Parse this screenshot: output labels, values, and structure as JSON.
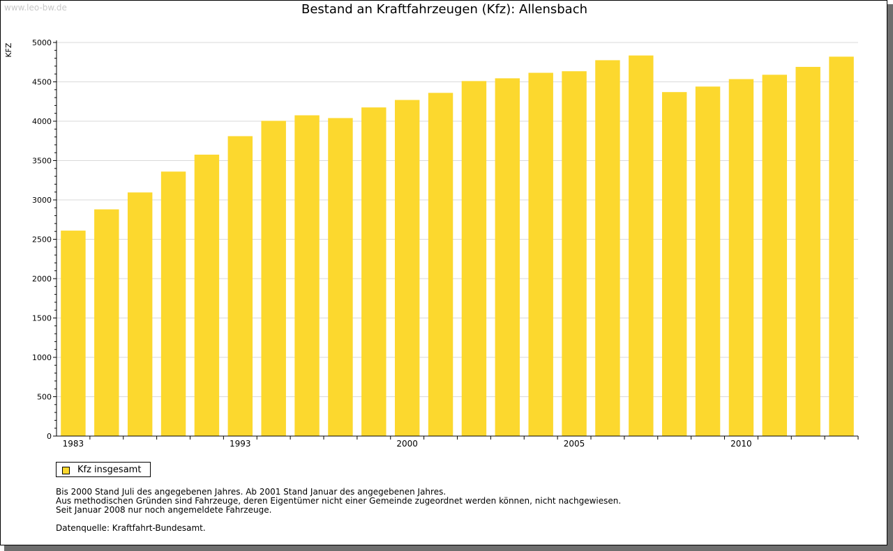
{
  "watermark": "www.leo-bw.de",
  "title": "Bestand an Kraftfahrzeugen (Kfz): Allensbach",
  "legend": {
    "label": "Kfz insgesamt"
  },
  "notes": [
    "Bis 2000 Stand Juli des angegebenen Jahres. Ab 2001 Stand Januar des angegebenen Jahres.",
    "Aus methodischen Gründen sind Fahrzeuge, deren Eigentümer nicht einer Gemeinde zugeordnet werden können, nicht nachgewiesen.",
    "Seit Januar 2008 nur noch angemeldete Fahrzeuge."
  ],
  "source": "Datenquelle: Kraftfahrt-Bundesamt.",
  "colors": {
    "bar": "#fcd82e",
    "grid": "#d9d9d9",
    "axis": "#000000"
  },
  "chart_data": {
    "type": "bar",
    "title": "Bestand an Kraftfahrzeugen (Kfz): Allensbach",
    "xlabel": "",
    "ylabel": "KFZ",
    "ylim": [
      0,
      5000
    ],
    "yticks": [
      0,
      500,
      1000,
      1500,
      2000,
      2500,
      3000,
      3500,
      4000,
      4500,
      5000
    ],
    "categories": [
      "1983",
      "",
      "",
      "",
      "",
      "1993",
      "",
      "",
      "",
      "",
      "2000",
      "",
      "",
      "",
      "",
      "2005",
      "",
      "",
      "",
      "",
      "2010",
      "",
      "",
      ""
    ],
    "series": [
      {
        "name": "Kfz insgesamt",
        "values": [
          2610,
          2880,
          3095,
          3360,
          3575,
          3810,
          4005,
          4075,
          4040,
          4175,
          4270,
          4360,
          4510,
          4545,
          4615,
          4635,
          4775,
          4835,
          4370,
          4440,
          4535,
          4590,
          4690,
          4820
        ]
      }
    ],
    "grid": true,
    "legend_position": "bottom-left"
  }
}
